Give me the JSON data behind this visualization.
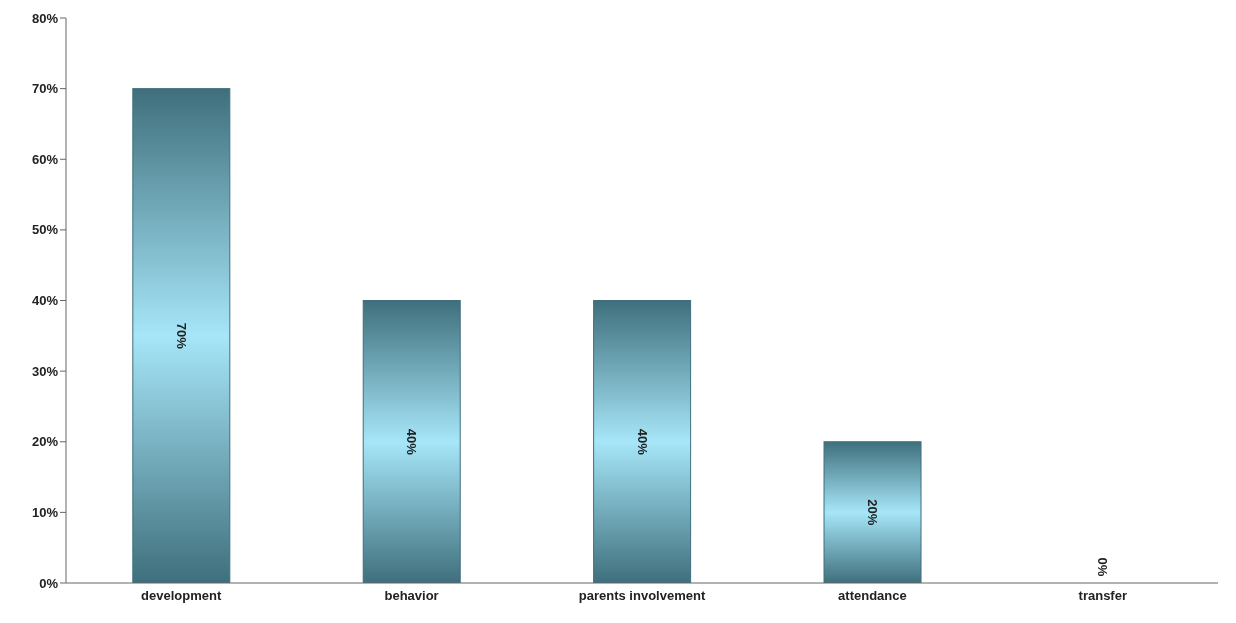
{
  "chart_data": {
    "type": "bar",
    "categories": [
      "development",
      "behavior",
      "parents involvement",
      "attendance",
      "transfer"
    ],
    "values": [
      70,
      40,
      40,
      20,
      0
    ],
    "value_labels": [
      "70%",
      "40%",
      "40%",
      "20%",
      "0%"
    ],
    "color": "#3f6f7c",
    "ylim": [
      0,
      80
    ],
    "yticks": [
      {
        "value": 0,
        "label": "0%"
      },
      {
        "value": 10,
        "label": "10%"
      },
      {
        "value": 20,
        "label": "20%"
      },
      {
        "value": 30,
        "label": "30%"
      },
      {
        "value": 40,
        "label": "40%"
      },
      {
        "value": 50,
        "label": "50%"
      },
      {
        "value": 60,
        "label": "60%"
      },
      {
        "value": 70,
        "label": "70%"
      },
      {
        "value": 80,
        "label": "80%"
      }
    ],
    "grid": false,
    "legend": false
  }
}
